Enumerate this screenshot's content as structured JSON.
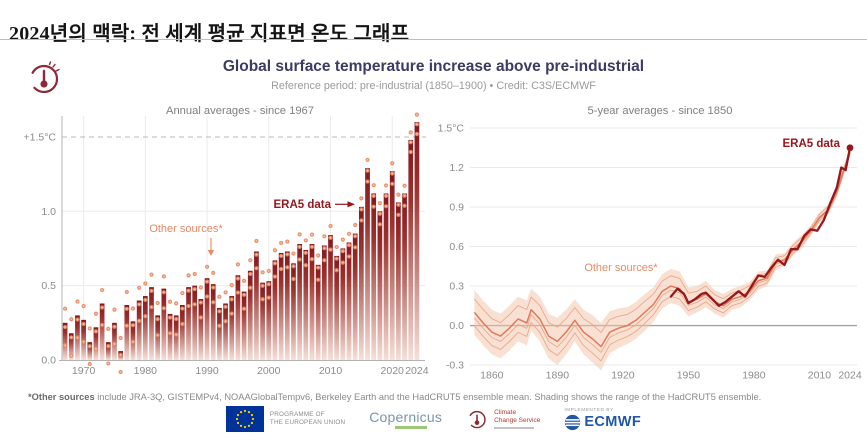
{
  "page": {
    "title_ko": "2024년의 맥락: 전 세계 평균 지표면 온도 그래프"
  },
  "figure": {
    "title": "Global surface temperature increase above pre-industrial",
    "subtitle": "Reference period: pre-industrial (1850–1900) • Credit: C3S/ECMWF",
    "footnote_bold": "*Other sources",
    "footnote_rest": " include JRA-3Q, GISTEMPv4, NOAAGlobalTempv6, Berkeley Earth and the HadCRUT5 ensemble mean. Shading shows the range of the HadCRUT5 ensemble.",
    "logos": {
      "eu_text_line1": "PROGRAMME OF",
      "eu_text_line2": "THE EUROPEAN UNION",
      "copernicus": "Copernicus",
      "c3s_line1": "Climate",
      "c3s_line2": "Change Service",
      "implemented_by": "IMPLEMENTED BY",
      "ecmwf": "ECMWF"
    },
    "colors": {
      "dark_red": "#96171c",
      "salmon": "#e98a66",
      "band": "#f2c3a8",
      "navy": "#3b3b63",
      "eu_blue": "#003399",
      "ecmwf_blue": "#2257a5",
      "copernicus_blue": "#7896ab",
      "green": "#7ab648",
      "maroon": "#8e2a38",
      "grid": "#ebebeb",
      "axis": "#b3b3b3",
      "tick_text": "#8c8c8c"
    }
  },
  "chart_data": [
    {
      "type": "bar",
      "title": "Annual averages - since 1967",
      "start_year": 1967,
      "end_year": 2024,
      "values": [
        0.25,
        0.18,
        0.3,
        0.27,
        0.12,
        0.22,
        0.38,
        0.12,
        0.25,
        0.06,
        0.37,
        0.26,
        0.4,
        0.43,
        0.49,
        0.3,
        0.48,
        0.31,
        0.3,
        0.37,
        0.49,
        0.5,
        0.41,
        0.55,
        0.51,
        0.35,
        0.38,
        0.43,
        0.57,
        0.46,
        0.6,
        0.73,
        0.52,
        0.53,
        0.67,
        0.72,
        0.73,
        0.65,
        0.78,
        0.74,
        0.78,
        0.64,
        0.77,
        0.84,
        0.7,
        0.75,
        0.79,
        0.85,
        1.03,
        1.29,
        1.12,
        1.0,
        1.12,
        1.27,
        1.06,
        1.12,
        1.48,
        1.6
      ],
      "y_tick_values": [
        1.5,
        1.0,
        0.5,
        0.0
      ],
      "y_tick_labels": [
        "+1.5°C",
        "1.0",
        "0.5",
        "0.0"
      ],
      "x_tick_years": [
        1970,
        1980,
        1990,
        2000,
        2010,
        2020,
        2024
      ],
      "ylim": [
        0,
        1.65
      ],
      "threshold_dashed_at": 1.5,
      "annotations": {
        "era5": "ERA5 data",
        "other": "Other sources*"
      }
    },
    {
      "type": "line",
      "title": "5-year averages - since 1850",
      "y_tick_values": [
        1.5,
        1.2,
        0.9,
        0.6,
        0.3,
        0.0,
        -0.3
      ],
      "y_tick_labels": [
        "1.5°C",
        "1.2",
        "0.9",
        "0.6",
        "0.3",
        "0.0",
        "-0.3"
      ],
      "x_tick_years": [
        1860,
        1890,
        1920,
        1950,
        1980,
        2010,
        2024
      ],
      "xlim": [
        1850,
        2024
      ],
      "ylim": [
        -0.35,
        1.55
      ],
      "series": [
        {
          "name": "ERA5 data",
          "x": [
            1942,
            1945,
            1948,
            1950,
            1953,
            1956,
            1958,
            1961,
            1964,
            1967,
            1970,
            1973,
            1976,
            1979,
            1982,
            1985,
            1988,
            1991,
            1994,
            1997,
            2000,
            2003,
            2006,
            2009,
            2012,
            2015,
            2018,
            2020,
            2022,
            2024
          ],
          "y": [
            0.22,
            0.28,
            0.24,
            0.17,
            0.2,
            0.24,
            0.25,
            0.2,
            0.15,
            0.18,
            0.22,
            0.26,
            0.22,
            0.3,
            0.38,
            0.37,
            0.44,
            0.5,
            0.46,
            0.58,
            0.58,
            0.68,
            0.73,
            0.72,
            0.8,
            0.93,
            1.05,
            1.2,
            1.18,
            1.35
          ]
        },
        {
          "name": "Other sources*",
          "x": [
            1852,
            1856,
            1860,
            1864,
            1868,
            1872,
            1876,
            1878,
            1882,
            1886,
            1890,
            1894,
            1898,
            1902,
            1906,
            1910,
            1914,
            1918,
            1922,
            1926,
            1930,
            1934,
            1938,
            1942,
            1946,
            1950,
            1954,
            1958,
            1962,
            1966,
            1970,
            1974,
            1978,
            1982,
            1986,
            1990,
            1994,
            1998,
            2002,
            2006,
            2010,
            2014,
            2018,
            2022,
            2024
          ],
          "median": [
            0.1,
            0.02,
            -0.05,
            -0.08,
            -0.02,
            0.05,
            0.02,
            0.12,
            0.05,
            -0.08,
            -0.12,
            -0.05,
            0.04,
            -0.05,
            -0.1,
            -0.16,
            -0.05,
            -0.02,
            0.0,
            0.04,
            0.1,
            0.16,
            0.26,
            0.3,
            0.28,
            0.18,
            0.2,
            0.24,
            0.18,
            0.15,
            0.2,
            0.22,
            0.26,
            0.34,
            0.36,
            0.48,
            0.5,
            0.58,
            0.64,
            0.72,
            0.82,
            0.88,
            1.02,
            1.22,
            1.32
          ],
          "low": [
            -0.07,
            -0.15,
            -0.22,
            -0.25,
            -0.19,
            -0.12,
            -0.15,
            -0.04,
            -0.12,
            -0.25,
            -0.3,
            -0.22,
            -0.12,
            -0.22,
            -0.28,
            -0.34,
            -0.21,
            -0.17,
            -0.14,
            -0.1,
            -0.04,
            0.03,
            0.13,
            0.17,
            0.15,
            0.07,
            0.1,
            0.14,
            0.09,
            0.06,
            0.12,
            0.14,
            0.19,
            0.27,
            0.3,
            0.42,
            0.45,
            0.53,
            0.59,
            0.68,
            0.78,
            0.84,
            0.98,
            1.19,
            1.29
          ],
          "high": [
            0.27,
            0.19,
            0.12,
            0.09,
            0.15,
            0.22,
            0.19,
            0.28,
            0.22,
            0.09,
            0.06,
            0.12,
            0.2,
            0.12,
            0.08,
            0.02,
            0.11,
            0.13,
            0.14,
            0.18,
            0.24,
            0.29,
            0.39,
            0.43,
            0.41,
            0.29,
            0.3,
            0.34,
            0.27,
            0.24,
            0.28,
            0.3,
            0.33,
            0.41,
            0.42,
            0.54,
            0.55,
            0.63,
            0.69,
            0.76,
            0.86,
            0.92,
            1.06,
            1.25,
            1.35
          ]
        }
      ],
      "annotations": {
        "era5": "ERA5 data",
        "other": "Other sources*"
      }
    }
  ]
}
